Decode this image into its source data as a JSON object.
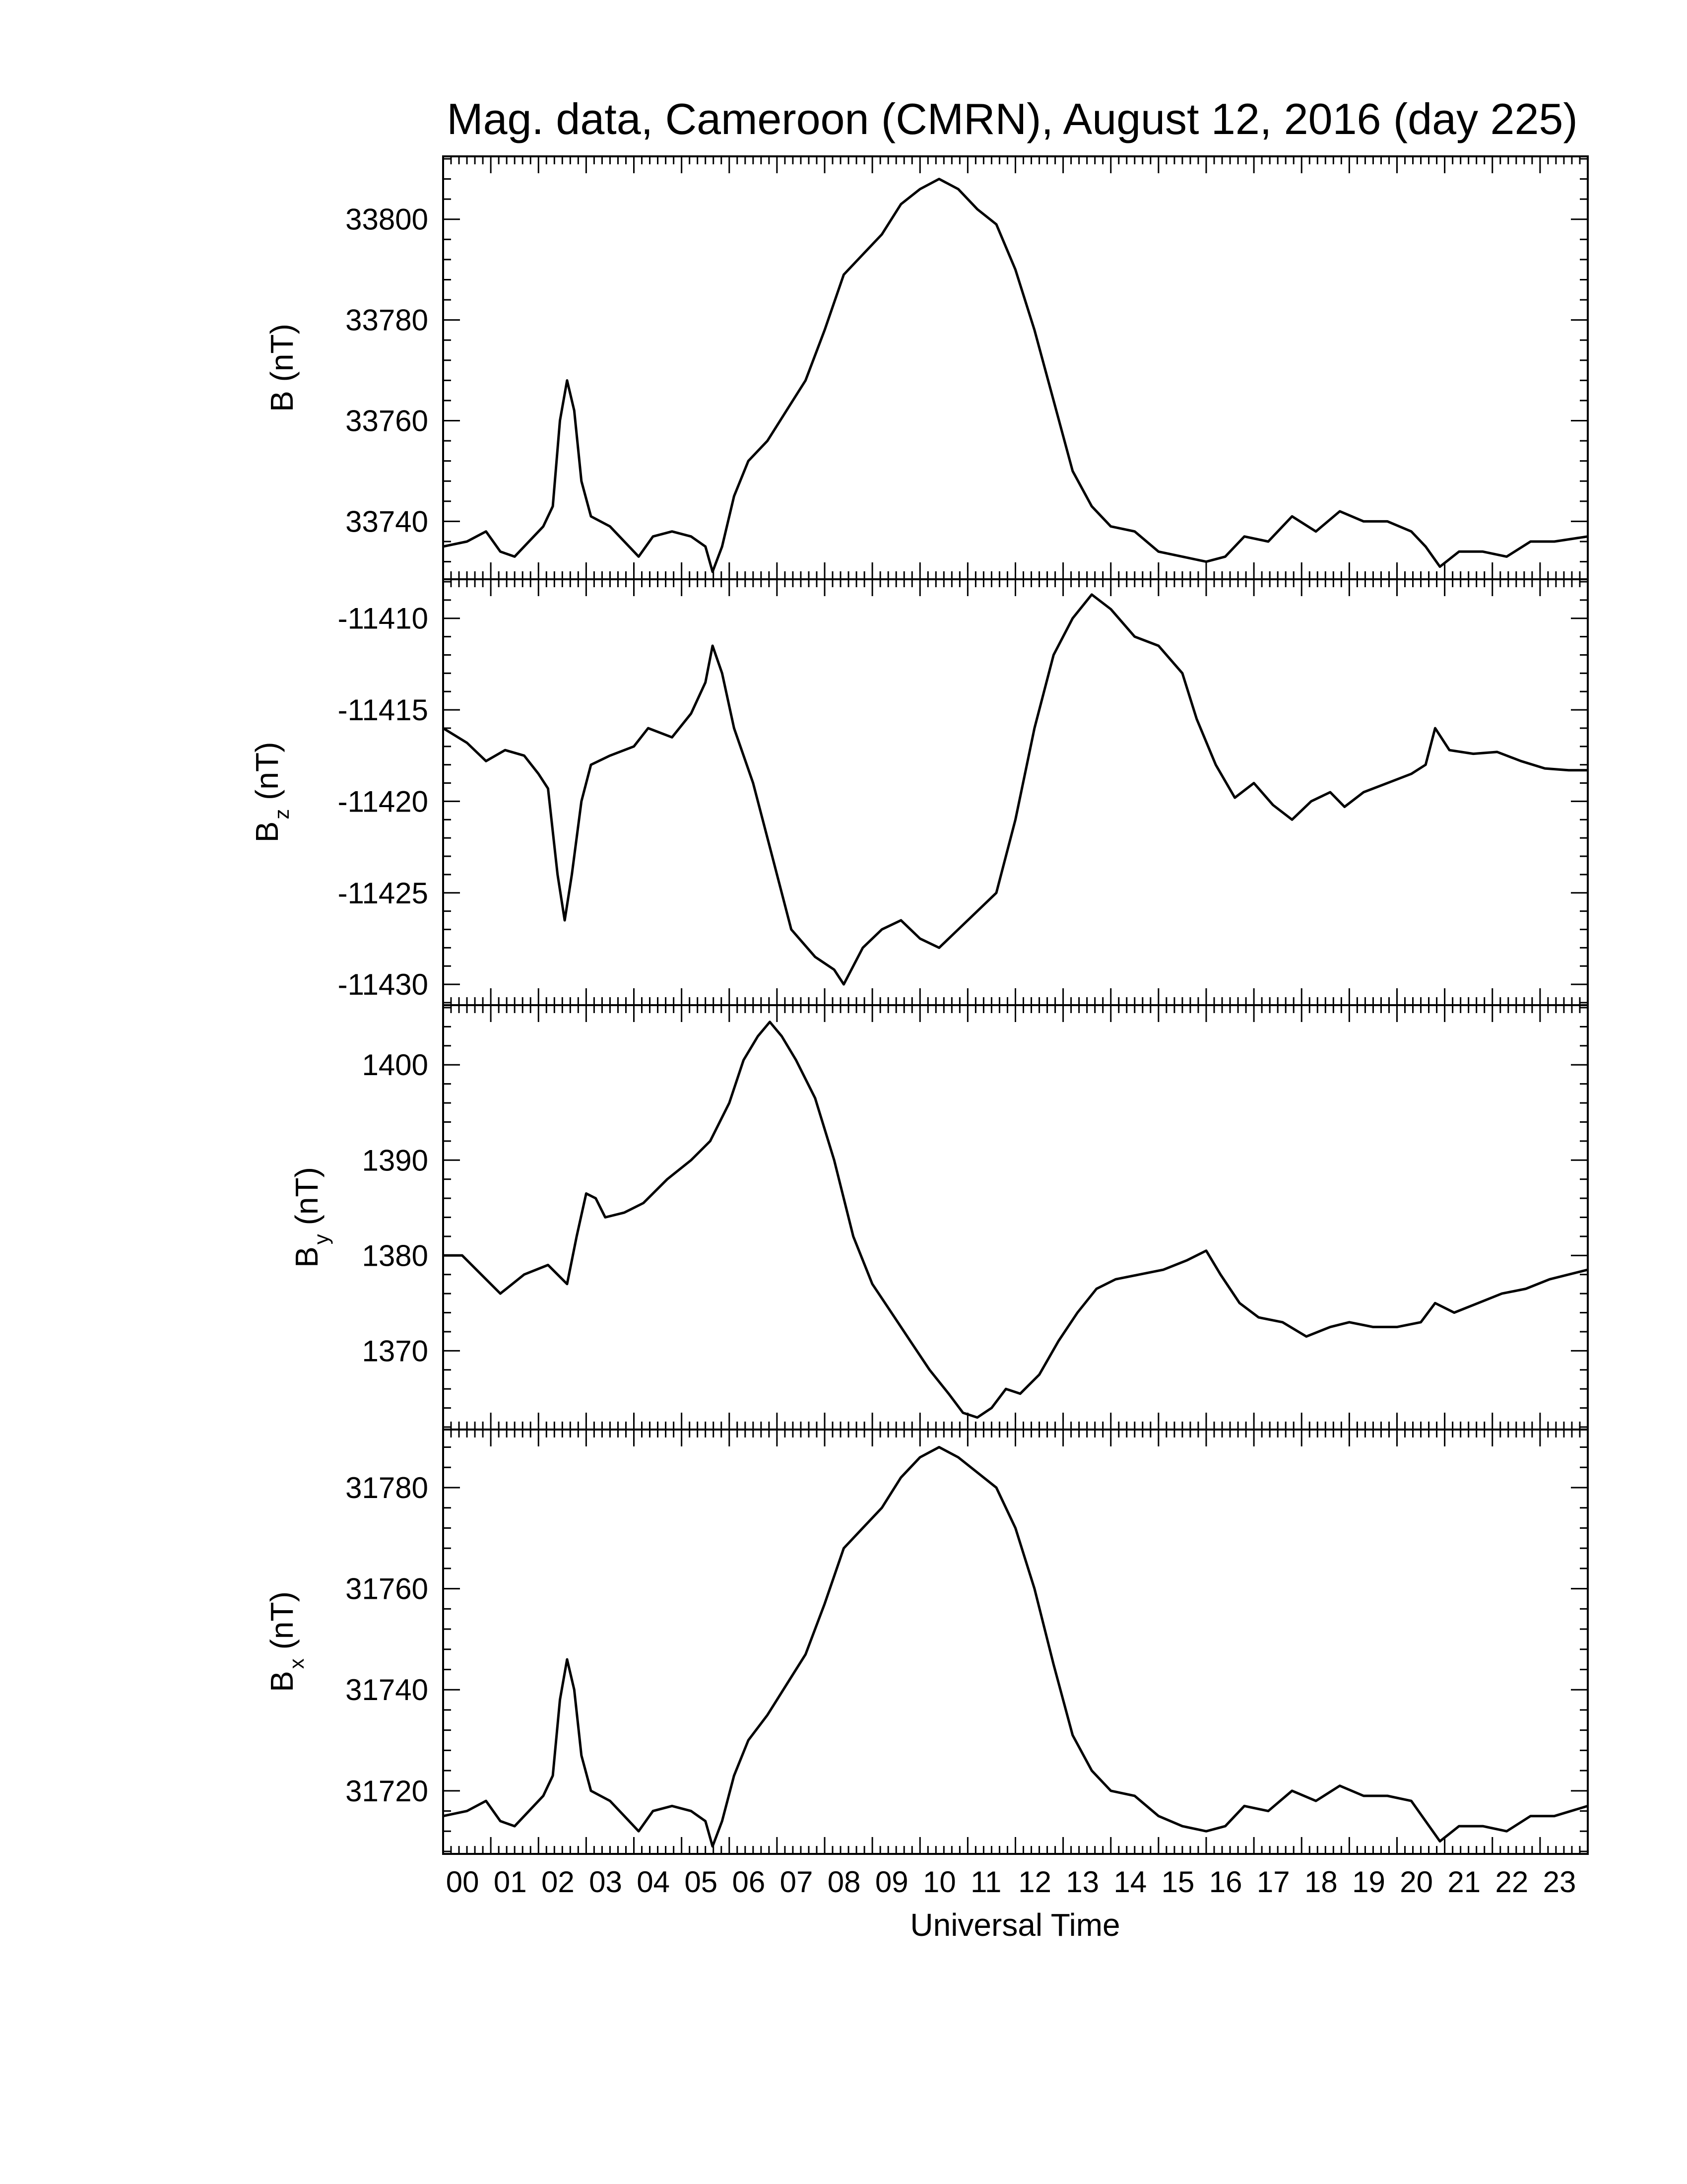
{
  "chart_data": {
    "type": "line",
    "title": "Mag. data, Cameroon (CMRN), August 12, 2016 (day 225)",
    "xlabel": "Universal Time",
    "xlim": [
      0,
      24
    ],
    "x_tick_labels": [
      "00",
      "01",
      "02",
      "03",
      "04",
      "05",
      "06",
      "07",
      "08",
      "09",
      "10",
      "11",
      "12",
      "13",
      "14",
      "15",
      "16",
      "17",
      "18",
      "19",
      "20",
      "21",
      "22",
      "23"
    ],
    "panels": [
      {
        "ylabel": {
          "main": "B",
          "sub": "",
          "unit": "(nT)"
        },
        "ylim": [
          33729,
          33812
        ],
        "yticks": [
          33740,
          33760,
          33780,
          33800
        ],
        "points": [
          [
            0,
            33735
          ],
          [
            0.5,
            33736
          ],
          [
            0.9,
            33738
          ],
          [
            1.2,
            33734
          ],
          [
            1.5,
            33733
          ],
          [
            1.8,
            33736
          ],
          [
            2.1,
            33739
          ],
          [
            2.3,
            33743
          ],
          [
            2.45,
            33760
          ],
          [
            2.6,
            33768
          ],
          [
            2.75,
            33762
          ],
          [
            2.9,
            33748
          ],
          [
            3.1,
            33741
          ],
          [
            3.5,
            33739
          ],
          [
            3.9,
            33735
          ],
          [
            4.1,
            33733
          ],
          [
            4.4,
            33737
          ],
          [
            4.8,
            33738
          ],
          [
            5.2,
            33737
          ],
          [
            5.5,
            33735
          ],
          [
            5.65,
            33730
          ],
          [
            5.85,
            33735
          ],
          [
            6.1,
            33745
          ],
          [
            6.4,
            33752
          ],
          [
            6.8,
            33756
          ],
          [
            7.2,
            33762
          ],
          [
            7.6,
            33768
          ],
          [
            8.0,
            33778
          ],
          [
            8.4,
            33789
          ],
          [
            8.8,
            33793
          ],
          [
            9.2,
            33797
          ],
          [
            9.6,
            33803
          ],
          [
            10.0,
            33806
          ],
          [
            10.4,
            33808
          ],
          [
            10.8,
            33806
          ],
          [
            11.2,
            33802
          ],
          [
            11.6,
            33799
          ],
          [
            12.0,
            33790
          ],
          [
            12.4,
            33778
          ],
          [
            12.8,
            33764
          ],
          [
            13.2,
            33750
          ],
          [
            13.6,
            33743
          ],
          [
            14.0,
            33739
          ],
          [
            14.5,
            33738
          ],
          [
            15.0,
            33734
          ],
          [
            15.5,
            33733
          ],
          [
            16.0,
            33732
          ],
          [
            16.4,
            33733
          ],
          [
            16.8,
            33737
          ],
          [
            17.3,
            33736
          ],
          [
            17.8,
            33741
          ],
          [
            18.3,
            33738
          ],
          [
            18.8,
            33742
          ],
          [
            19.3,
            33740
          ],
          [
            19.8,
            33740
          ],
          [
            20.3,
            33738
          ],
          [
            20.6,
            33735
          ],
          [
            20.9,
            33731
          ],
          [
            21.3,
            33734
          ],
          [
            21.8,
            33734
          ],
          [
            22.3,
            33733
          ],
          [
            22.8,
            33736
          ],
          [
            23.3,
            33736
          ],
          [
            24.0,
            33737
          ]
        ]
      },
      {
        "ylabel": {
          "main": "B",
          "sub": "z",
          "unit": "(nT)"
        },
        "ylim": [
          -11431,
          -11408
        ],
        "yticks": [
          -11430,
          -11425,
          -11420,
          -11415,
          -11410
        ],
        "points": [
          [
            0,
            -11416
          ],
          [
            0.5,
            -11416.8
          ],
          [
            0.9,
            -11417.8
          ],
          [
            1.3,
            -11417.2
          ],
          [
            1.7,
            -11417.5
          ],
          [
            2.0,
            -11418.5
          ],
          [
            2.2,
            -11419.3
          ],
          [
            2.4,
            -11424
          ],
          [
            2.55,
            -11426.5
          ],
          [
            2.7,
            -11424
          ],
          [
            2.9,
            -11420
          ],
          [
            3.1,
            -11418
          ],
          [
            3.5,
            -11417.5
          ],
          [
            4.0,
            -11417
          ],
          [
            4.3,
            -11416
          ],
          [
            4.8,
            -11416.5
          ],
          [
            5.2,
            -11415.2
          ],
          [
            5.5,
            -11413.5
          ],
          [
            5.65,
            -11411.5
          ],
          [
            5.85,
            -11413
          ],
          [
            6.1,
            -11416
          ],
          [
            6.5,
            -11419
          ],
          [
            6.9,
            -11423
          ],
          [
            7.3,
            -11427
          ],
          [
            7.8,
            -11428.5
          ],
          [
            8.2,
            -11429.2
          ],
          [
            8.4,
            -11430
          ],
          [
            8.8,
            -11428
          ],
          [
            9.2,
            -11427
          ],
          [
            9.6,
            -11426.5
          ],
          [
            10.0,
            -11427.5
          ],
          [
            10.4,
            -11428
          ],
          [
            10.8,
            -11427
          ],
          [
            11.2,
            -11426
          ],
          [
            11.6,
            -11425
          ],
          [
            12.0,
            -11421
          ],
          [
            12.4,
            -11416
          ],
          [
            12.8,
            -11412
          ],
          [
            13.2,
            -11410
          ],
          [
            13.6,
            -11408.7
          ],
          [
            14.0,
            -11409.5
          ],
          [
            14.5,
            -11411
          ],
          [
            15.0,
            -11411.5
          ],
          [
            15.5,
            -11413
          ],
          [
            15.8,
            -11415.5
          ],
          [
            16.2,
            -11418
          ],
          [
            16.6,
            -11419.8
          ],
          [
            17.0,
            -11419
          ],
          [
            17.4,
            -11420.2
          ],
          [
            17.8,
            -11421
          ],
          [
            18.2,
            -11420
          ],
          [
            18.6,
            -11419.5
          ],
          [
            18.9,
            -11420.3
          ],
          [
            19.3,
            -11419.5
          ],
          [
            19.8,
            -11419
          ],
          [
            20.3,
            -11418.5
          ],
          [
            20.6,
            -11418
          ],
          [
            20.8,
            -11416
          ],
          [
            21.1,
            -11417.2
          ],
          [
            21.6,
            -11417.4
          ],
          [
            22.1,
            -11417.3
          ],
          [
            22.6,
            -11417.8
          ],
          [
            23.1,
            -11418.2
          ],
          [
            23.6,
            -11418.3
          ],
          [
            24.0,
            -11418.3
          ]
        ]
      },
      {
        "ylabel": {
          "main": "B",
          "sub": "y",
          "unit": "(nT)"
        },
        "ylim": [
          1362,
          1406
        ],
        "yticks": [
          1370,
          1380,
          1390,
          1400
        ],
        "points": [
          [
            0,
            1380
          ],
          [
            0.4,
            1380
          ],
          [
            0.8,
            1378
          ],
          [
            1.2,
            1376
          ],
          [
            1.7,
            1378
          ],
          [
            2.2,
            1379
          ],
          [
            2.4,
            1378
          ],
          [
            2.6,
            1377
          ],
          [
            2.8,
            1382
          ],
          [
            3.0,
            1386.5
          ],
          [
            3.2,
            1386
          ],
          [
            3.4,
            1384
          ],
          [
            3.8,
            1384.5
          ],
          [
            4.2,
            1385.5
          ],
          [
            4.7,
            1388
          ],
          [
            5.2,
            1390
          ],
          [
            5.6,
            1392
          ],
          [
            6.0,
            1396
          ],
          [
            6.3,
            1400.5
          ],
          [
            6.6,
            1403
          ],
          [
            6.85,
            1404.5
          ],
          [
            7.1,
            1403
          ],
          [
            7.4,
            1400.5
          ],
          [
            7.8,
            1396.5
          ],
          [
            8.2,
            1390
          ],
          [
            8.6,
            1382
          ],
          [
            9.0,
            1377
          ],
          [
            9.4,
            1374
          ],
          [
            9.8,
            1371
          ],
          [
            10.2,
            1368
          ],
          [
            10.6,
            1365.5
          ],
          [
            10.9,
            1363.5
          ],
          [
            11.2,
            1363
          ],
          [
            11.5,
            1364
          ],
          [
            11.8,
            1366
          ],
          [
            12.1,
            1365.5
          ],
          [
            12.5,
            1367.5
          ],
          [
            12.9,
            1371
          ],
          [
            13.3,
            1374
          ],
          [
            13.7,
            1376.5
          ],
          [
            14.1,
            1377.5
          ],
          [
            14.6,
            1378
          ],
          [
            15.1,
            1378.5
          ],
          [
            15.6,
            1379.5
          ],
          [
            16.0,
            1380.5
          ],
          [
            16.3,
            1378
          ],
          [
            16.7,
            1375
          ],
          [
            17.1,
            1373.5
          ],
          [
            17.6,
            1373
          ],
          [
            18.1,
            1371.5
          ],
          [
            18.6,
            1372.5
          ],
          [
            19.0,
            1373
          ],
          [
            19.5,
            1372.5
          ],
          [
            20.0,
            1372.5
          ],
          [
            20.5,
            1373
          ],
          [
            20.8,
            1375
          ],
          [
            21.2,
            1374
          ],
          [
            21.7,
            1375
          ],
          [
            22.2,
            1376
          ],
          [
            22.7,
            1376.5
          ],
          [
            23.2,
            1377.5
          ],
          [
            24.0,
            1378.5
          ]
        ]
      },
      {
        "ylabel": {
          "main": "B",
          "sub": "x",
          "unit": "(nT)"
        },
        "ylim": [
          31708,
          31791
        ],
        "yticks": [
          31720,
          31740,
          31760,
          31780
        ],
        "points": [
          [
            0,
            31715
          ],
          [
            0.5,
            31716
          ],
          [
            0.9,
            31718
          ],
          [
            1.2,
            31714
          ],
          [
            1.5,
            31713
          ],
          [
            1.8,
            31716
          ],
          [
            2.1,
            31719
          ],
          [
            2.3,
            31723
          ],
          [
            2.45,
            31738
          ],
          [
            2.6,
            31746
          ],
          [
            2.75,
            31740
          ],
          [
            2.9,
            31727
          ],
          [
            3.1,
            31720
          ],
          [
            3.5,
            31718
          ],
          [
            3.9,
            31714
          ],
          [
            4.1,
            31712
          ],
          [
            4.4,
            31716
          ],
          [
            4.8,
            31717
          ],
          [
            5.2,
            31716
          ],
          [
            5.5,
            31714
          ],
          [
            5.65,
            31709
          ],
          [
            5.85,
            31714
          ],
          [
            6.1,
            31723
          ],
          [
            6.4,
            31730
          ],
          [
            6.8,
            31735
          ],
          [
            7.2,
            31741
          ],
          [
            7.6,
            31747
          ],
          [
            8.0,
            31757
          ],
          [
            8.4,
            31768
          ],
          [
            8.8,
            31772
          ],
          [
            9.2,
            31776
          ],
          [
            9.6,
            31782
          ],
          [
            10.0,
            31786
          ],
          [
            10.4,
            31788
          ],
          [
            10.8,
            31786
          ],
          [
            11.2,
            31783
          ],
          [
            11.6,
            31780
          ],
          [
            12.0,
            31772
          ],
          [
            12.4,
            31760
          ],
          [
            12.8,
            31745
          ],
          [
            13.2,
            31731
          ],
          [
            13.6,
            31724
          ],
          [
            14.0,
            31720
          ],
          [
            14.5,
            31719
          ],
          [
            15.0,
            31715
          ],
          [
            15.5,
            31713
          ],
          [
            16.0,
            31712
          ],
          [
            16.4,
            31713
          ],
          [
            16.8,
            31717
          ],
          [
            17.3,
            31716
          ],
          [
            17.8,
            31720
          ],
          [
            18.3,
            31718
          ],
          [
            18.8,
            31721
          ],
          [
            19.3,
            31719
          ],
          [
            19.8,
            31719
          ],
          [
            20.3,
            31718
          ],
          [
            20.6,
            31714
          ],
          [
            20.9,
            31710
          ],
          [
            21.3,
            31713
          ],
          [
            21.8,
            31713
          ],
          [
            22.3,
            31712
          ],
          [
            22.8,
            31715
          ],
          [
            23.3,
            31715
          ],
          [
            24.0,
            31717
          ]
        ]
      }
    ]
  }
}
